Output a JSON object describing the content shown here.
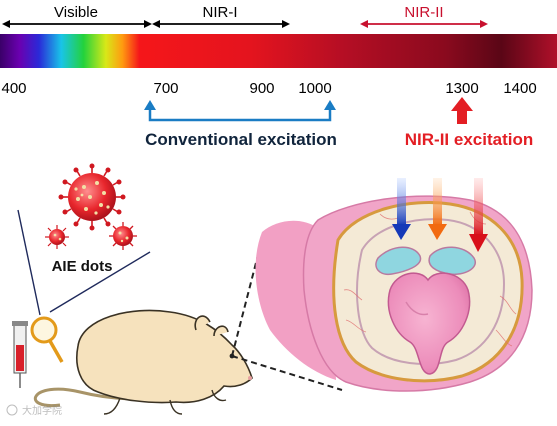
{
  "spectrum": {
    "bands": {
      "visible": "Visible",
      "nir1": "NIR-I",
      "nir2": "NIR-II"
    },
    "ticks": [
      "400",
      "700",
      "900",
      "1000",
      "1300",
      "1400"
    ],
    "conventional_label": "Conventional excitation",
    "nir2_label": "NIR-II excitation"
  },
  "illustration": {
    "dots_label": "AIE dots",
    "watermark": "大加学院"
  },
  "colors": {
    "accent_red": "#e31e24",
    "accent_blue": "#1a7cc4",
    "band_red": "#c8102e"
  },
  "icons": [
    "double-arrow-icon",
    "up-arrow-icon",
    "virus-dot-icon",
    "mouse-icon",
    "brain-section-icon",
    "syringe-icon",
    "magnifier-icon"
  ]
}
